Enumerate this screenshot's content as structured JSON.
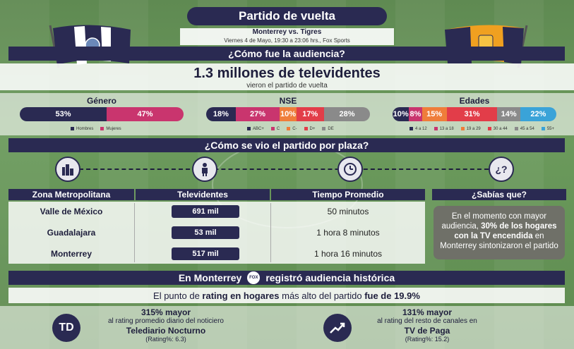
{
  "header": {
    "title": "Partido de vuelta",
    "match": "Monterrey vs. Tigres",
    "datetime": "Viernes 4 de Mayo, 19:30 a 23:06 hrs., Fox Sports"
  },
  "audience": {
    "banner": "¿Cómo fue la audiencia?",
    "headline": "1.3 millones de televidentes",
    "subline": "vieron el partido de vuelta"
  },
  "genero": {
    "title": "Género",
    "segments": [
      {
        "label": "53%",
        "value": 53,
        "color": "#2a2a52"
      },
      {
        "label": "47%",
        "value": 47,
        "color": "#c9356e"
      }
    ],
    "legend": [
      {
        "label": "Hombres",
        "color": "#2a2a52"
      },
      {
        "label": "Mujeres",
        "color": "#c9356e"
      }
    ]
  },
  "nse": {
    "title": "NSE",
    "segments": [
      {
        "label": "18%",
        "value": 18,
        "color": "#2a2a52"
      },
      {
        "label": "27%",
        "value": 27,
        "color": "#c9356e"
      },
      {
        "label": "10%",
        "value": 10,
        "color": "#ef7d3a"
      },
      {
        "label": "17%",
        "value": 17,
        "color": "#e23d49"
      },
      {
        "label": "28%",
        "value": 28,
        "color": "#8a8a8a"
      }
    ],
    "legend": [
      {
        "label": "ABC+",
        "color": "#2a2a52"
      },
      {
        "label": "C",
        "color": "#c9356e"
      },
      {
        "label": "C-",
        "color": "#ef7d3a"
      },
      {
        "label": "D+",
        "color": "#e23d49"
      },
      {
        "label": "DE",
        "color": "#8a8a8a"
      }
    ]
  },
  "edades": {
    "title": "Edades",
    "segments": [
      {
        "label": "10%",
        "value": 10,
        "color": "#2a2a52"
      },
      {
        "label": "8%",
        "value": 8,
        "color": "#c9356e"
      },
      {
        "label": "15%",
        "value": 15,
        "color": "#ef7d3a"
      },
      {
        "label": "31%",
        "value": 31,
        "color": "#e23d49"
      },
      {
        "label": "14%",
        "value": 14,
        "color": "#8a8a8a"
      },
      {
        "label": "22%",
        "value": 22,
        "color": "#3aa3d8"
      }
    ],
    "legend": [
      {
        "label": "4 a 12",
        "color": "#2a2a52"
      },
      {
        "label": "13 a 18",
        "color": "#c9356e"
      },
      {
        "label": "19 a 29",
        "color": "#ef7d3a"
      },
      {
        "label": "30 a 44",
        "color": "#e23d49"
      },
      {
        "label": "45 a 54",
        "color": "#8a8a8a"
      },
      {
        "label": "55+",
        "color": "#3aa3d8"
      }
    ]
  },
  "plaza": {
    "banner": "¿Cómo se vio el partido por plaza?",
    "columns": [
      "Zona Metropolitana",
      "Televidentes",
      "Tiempo Promedio"
    ],
    "rows": [
      {
        "city": "Valle de México",
        "viewers": "691 mil",
        "time": "50 minutos"
      },
      {
        "city": "Guadalajara",
        "viewers": "53 mil",
        "time": "1 hora 8 minutos"
      },
      {
        "city": "Monterrey",
        "viewers": "517 mil",
        "time": "1 hora 16 minutos"
      }
    ],
    "icons": {
      "city": "city-icon",
      "person": "person-icon",
      "clock": "clock-icon",
      "question": "question-icon"
    }
  },
  "sabias": {
    "title": "¿Sabías que?",
    "text_pre": "En el momento con mayor audiencia, ",
    "text_bold": "30% de los hogares con la TV encendida",
    "text_post": " en Monterrey sintonizaron el partido"
  },
  "monterrey": {
    "banner_pre": "En Monterrey",
    "logo": "FOX",
    "banner_post": "registró audiencia histórica",
    "rating_pre": "El punto de ",
    "rating_bold1": "rating en hogares",
    "rating_mid": " más alto del partido ",
    "rating_bold2": "fue de 19.9%"
  },
  "compare": {
    "left": {
      "logo": "TD",
      "big": "315% mayor",
      "line": "al rating promedio diario del noticiero",
      "name": "Telediario Nocturno",
      "rating": "(Rating%: 6.3)"
    },
    "right": {
      "logo": "trend-up-icon",
      "big": "131% mayor",
      "line": "al rating del resto de canales en",
      "name": "TV de Paga",
      "rating": "(Rating%: 15.2)"
    }
  }
}
